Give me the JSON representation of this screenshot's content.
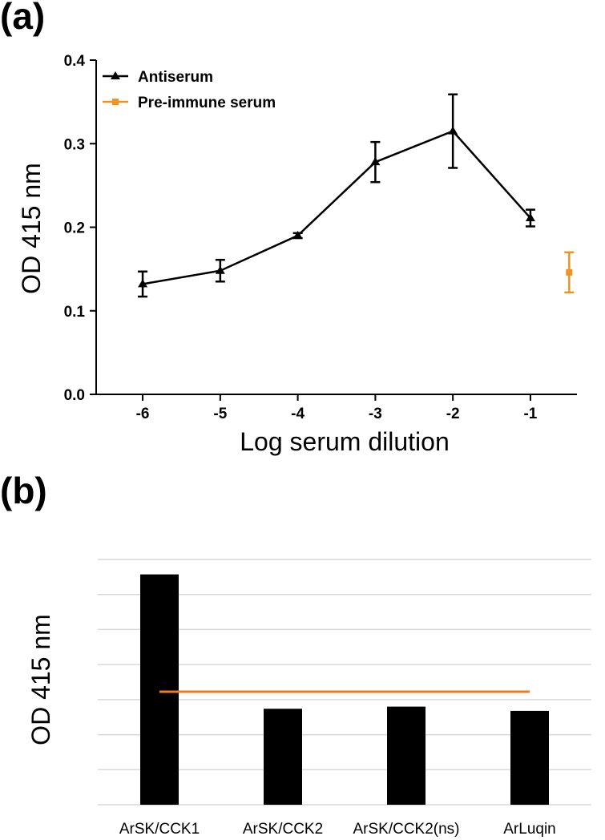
{
  "chart_data": [
    {
      "panel": "(a)",
      "type": "line",
      "xlabel": "Log serum dilution",
      "ylabel": "OD 415 nm",
      "ylim": [
        0,
        0.4
      ],
      "xlim": [
        -6.6,
        -0.4
      ],
      "yticks": [
        "0.0",
        "0.1",
        "0.2",
        "0.3",
        "0.4"
      ],
      "xticks": [
        "-6",
        "-5",
        "-4",
        "-3",
        "-2",
        "-1"
      ],
      "legend_position": "top-left",
      "series": [
        {
          "name": "Antiserum",
          "color": "#000000",
          "marker": "triangle",
          "x": [
            -6,
            -5,
            -4,
            -3,
            -2,
            -1
          ],
          "y": [
            0.132,
            0.148,
            0.19,
            0.278,
            0.315,
            0.211
          ],
          "err": [
            0.015,
            0.013,
            0.003,
            0.024,
            0.044,
            0.01
          ]
        },
        {
          "name": "Pre-immune serum",
          "color": "#f39121",
          "marker": "square",
          "x": [
            -0.5
          ],
          "y": [
            0.146
          ],
          "err": [
            0.024
          ]
        }
      ]
    },
    {
      "panel": "(b)",
      "type": "bar",
      "ylabel": "OD 415 nm",
      "ylim": [
        0,
        1.15
      ],
      "grid": true,
      "categories": [
        "ArSK/CCK1",
        "ArSK/CCK2",
        "ArSK/CCK2(ns)",
        "ArLuqin"
      ],
      "values": [
        1.08,
        0.45,
        0.46,
        0.44
      ],
      "bar_color": "#000000",
      "reference_line": {
        "value": 0.53,
        "color": "#f07b1f"
      }
    }
  ]
}
